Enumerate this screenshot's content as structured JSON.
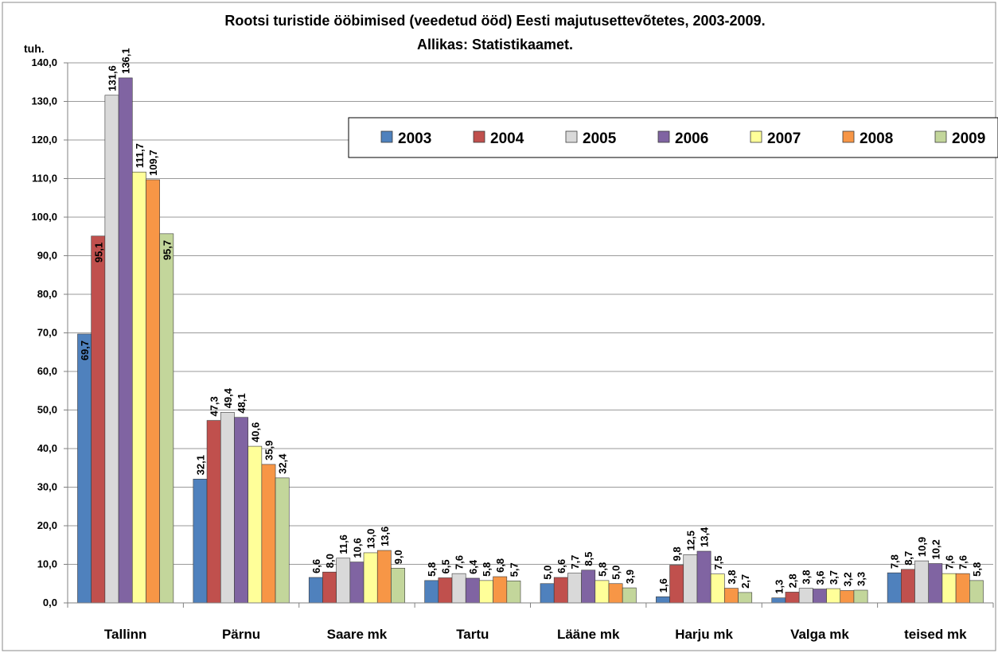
{
  "chart_data": {
    "type": "bar",
    "title": "Rootsi turistide ööbimised (veedetud ööd) Eesti majutusettevõtetes, 2003-2009.",
    "subtitle": "Allikas: Statistikaamet.",
    "ylabel": "tuh.",
    "ylim": [
      0,
      140
    ],
    "yticks": [
      "0,0",
      "10,0",
      "20,0",
      "30,0",
      "40,0",
      "50,0",
      "60,0",
      "70,0",
      "80,0",
      "90,0",
      "100,0",
      "110,0",
      "120,0",
      "130,0",
      "140,0"
    ],
    "grid": true,
    "legend_position": "top-right",
    "categories": [
      "Tallinn",
      "Pärnu",
      "Saare mk",
      "Tartu",
      "Lääne mk",
      "Harju mk",
      "Valga mk",
      "teised mk"
    ],
    "series": [
      {
        "name": "2003",
        "color": "#4f81bd",
        "values": [
          69.7,
          32.1,
          6.6,
          5.8,
          5.0,
          1.6,
          1.3,
          7.8
        ],
        "labels": [
          "69,7",
          "32,1",
          "6,6",
          "5,8",
          "5,0",
          "1,6",
          "1,3",
          "7,8"
        ]
      },
      {
        "name": "2004",
        "color": "#c0504d",
        "values": [
          95.1,
          47.3,
          8.0,
          6.5,
          6.6,
          9.8,
          2.8,
          8.7
        ],
        "labels": [
          "95,1",
          "47,3",
          "8,0",
          "6,5",
          "6,6",
          "9,8",
          "2,8",
          "8,7"
        ]
      },
      {
        "name": "2005",
        "color": "#d9d9d9",
        "values": [
          131.6,
          49.4,
          11.6,
          7.6,
          7.7,
          12.5,
          3.8,
          10.9
        ],
        "labels": [
          "131,6",
          "49,4",
          "11,6",
          "7,6",
          "7,7",
          "12,5",
          "3,8",
          "10,9"
        ]
      },
      {
        "name": "2006",
        "color": "#8064a2",
        "values": [
          136.1,
          48.1,
          10.6,
          6.4,
          8.5,
          13.4,
          3.6,
          10.2
        ],
        "labels": [
          "136,1",
          "48,1",
          "10,6",
          "6,4",
          "8,5",
          "13,4",
          "3,6",
          "10,2"
        ]
      },
      {
        "name": "2007",
        "color": "#ffff99",
        "values": [
          111.7,
          40.6,
          13.0,
          5.8,
          5.8,
          7.5,
          3.7,
          7.6
        ],
        "labels": [
          "111,7",
          "40,6",
          "13,0",
          "5,8",
          "5,8",
          "7,5",
          "3,7",
          "7,6"
        ]
      },
      {
        "name": "2008",
        "color": "#f79646",
        "values": [
          109.7,
          35.9,
          13.6,
          6.8,
          5.0,
          3.8,
          3.2,
          7.6
        ],
        "labels": [
          "109,7",
          "35,9",
          "13,6",
          "6,8",
          "5,0",
          "3,8",
          "3,2",
          "7,6"
        ]
      },
      {
        "name": "2009",
        "color": "#c3d69b",
        "values": [
          95.7,
          32.4,
          9.0,
          5.7,
          3.9,
          2.7,
          3.3,
          5.8
        ],
        "labels": [
          "95,7",
          "32,4",
          "9,0",
          "5,7",
          "3,9",
          "2,7",
          "3,3",
          "5,8"
        ]
      }
    ]
  }
}
